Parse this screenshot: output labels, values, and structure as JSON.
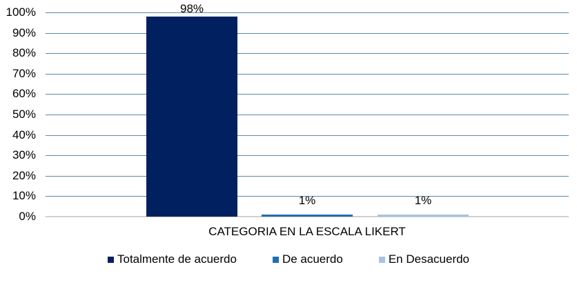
{
  "chart_data": {
    "type": "bar",
    "title": "",
    "xlabel": "CATEGORIA EN LA ESCALA LIKERT",
    "ylabel": "",
    "ylim": [
      0,
      100
    ],
    "yticks": [
      "0%",
      "10%",
      "20%",
      "30%",
      "40%",
      "50%",
      "60%",
      "70%",
      "80%",
      "90%",
      "100%"
    ],
    "grid": true,
    "legend_position": "bottom",
    "categories": [
      "CATEGORIA EN LA ESCALA LIKERT"
    ],
    "series": [
      {
        "name": "Totalmente de acuerdo",
        "values": [
          98
        ],
        "label": "98%",
        "color": "#002060"
      },
      {
        "name": "De acuerdo",
        "values": [
          1
        ],
        "label": "1%",
        "color": "#1f6fb0"
      },
      {
        "name": "En Desacuerdo",
        "values": [
          1
        ],
        "label": "1%",
        "color": "#a6c4e0"
      }
    ]
  }
}
